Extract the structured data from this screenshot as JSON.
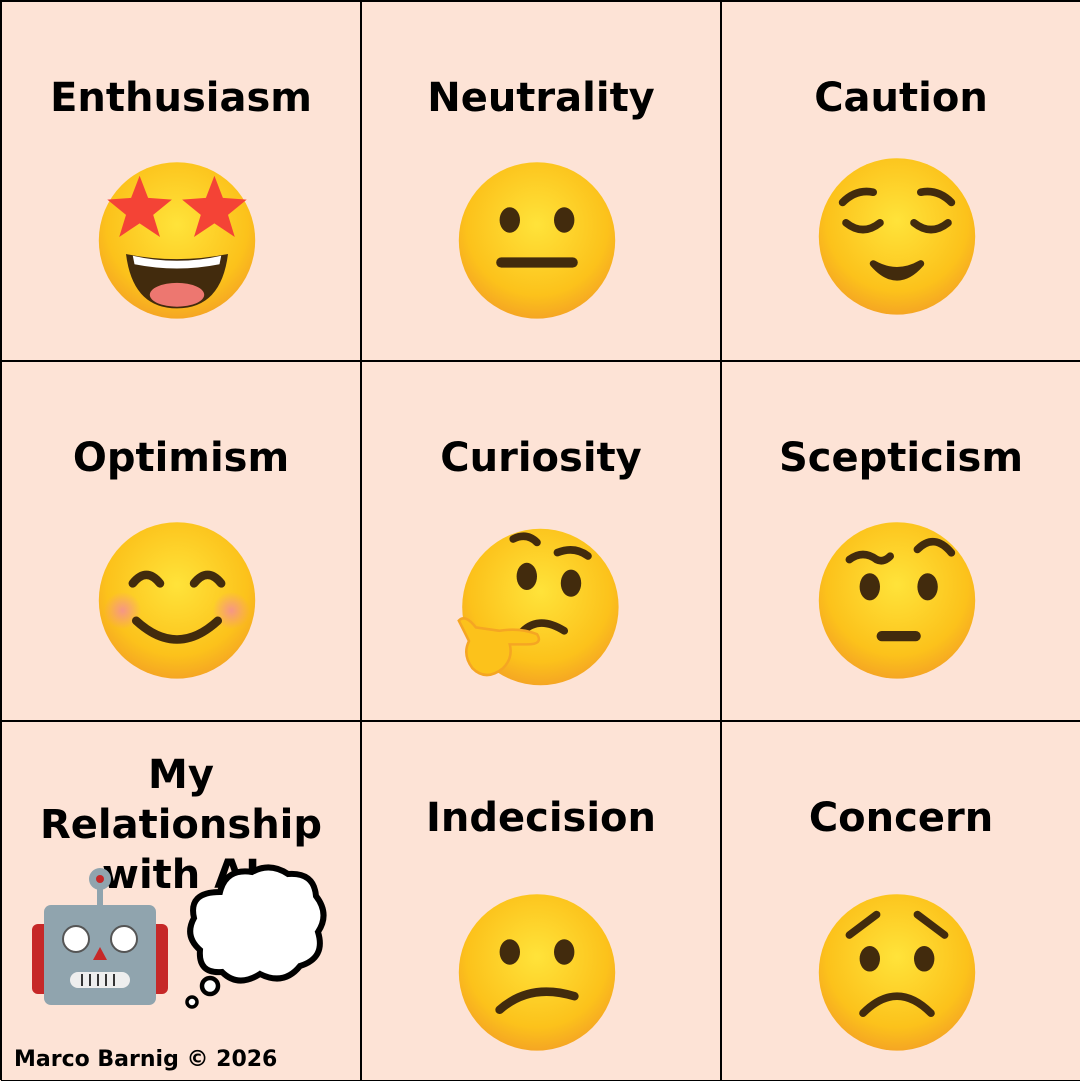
{
  "cells": [
    {
      "label": "Enthusiasm",
      "icon": "star-struck-face-icon"
    },
    {
      "label": "Neutrality",
      "icon": "neutral-face-icon"
    },
    {
      "label": "Caution",
      "icon": "relieved-face-icon"
    },
    {
      "label": "Optimism",
      "icon": "smiling-face-icon"
    },
    {
      "label": "Curiosity",
      "icon": "thinking-face-icon"
    },
    {
      "label": "Scepticism",
      "icon": "raised-eyebrow-face-icon"
    },
    {
      "label": "My Relationship with AI",
      "icon": "robot-icon"
    },
    {
      "label": "Indecision",
      "icon": "confused-face-icon"
    },
    {
      "label": "Concern",
      "icon": "worried-face-icon"
    }
  ],
  "credit": "Marco Barnig © 2026",
  "colors": {
    "background": "#fde3d6",
    "face": "#fcc21b",
    "robot": "#90a4ae",
    "robot_ears": "#c62828"
  }
}
